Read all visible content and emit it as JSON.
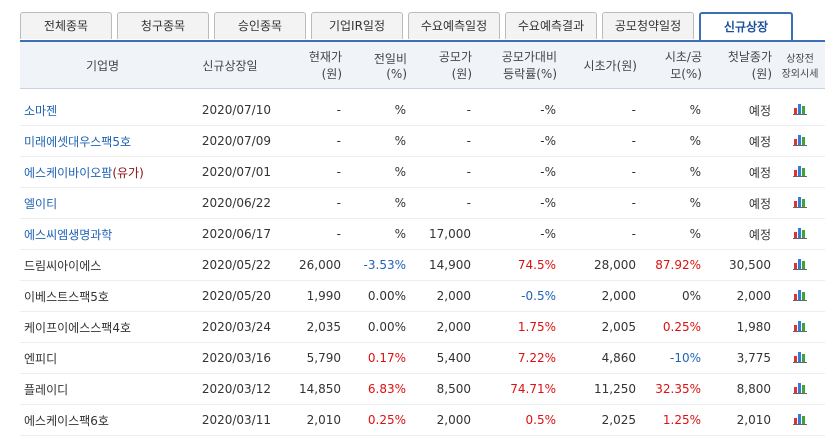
{
  "tabs": [
    "전체종목",
    "청구종목",
    "승인종목",
    "기업IR일정",
    "수요예측일정",
    "수요예측결과",
    "공모청약일정",
    "신규상장"
  ],
  "table": {
    "headers": [
      [
        "기업명"
      ],
      [
        "신규상장일"
      ],
      [
        "현재가",
        "(원)"
      ],
      [
        "전일비",
        "(%)"
      ],
      [
        "공모가",
        "(원)"
      ],
      [
        "공모가대비",
        "등락률(%)"
      ],
      [
        "시초가(원)"
      ],
      [
        "시초/공",
        "모(%)"
      ],
      [
        "첫날종가",
        "(원)"
      ],
      [
        "상장전",
        "장외시세"
      ]
    ],
    "rows": [
      {
        "name": "소마젠",
        "date": "2020/07/10",
        "price": "-",
        "change": "%",
        "offer": "-",
        "offer_change": "-%",
        "open": "-",
        "open_ratio": "%",
        "close": "예정"
      },
      {
        "name": "미래에셋대우스팩5호",
        "date": "2020/07/09",
        "price": "-",
        "change": "%",
        "offer": "-",
        "offer_change": "-%",
        "open": "-",
        "open_ratio": "%",
        "close": "예정"
      },
      {
        "name": "에스케이바이오팜",
        "tag": "(유가)",
        "date": "2020/07/01",
        "price": "-",
        "change": "%",
        "offer": "-",
        "offer_change": "-%",
        "open": "-",
        "open_ratio": "%",
        "close": "예정"
      },
      {
        "name": "엘이티",
        "date": "2020/06/22",
        "price": "-",
        "change": "%",
        "offer": "-",
        "offer_change": "-%",
        "open": "-",
        "open_ratio": "%",
        "close": "예정"
      },
      {
        "name": "에스씨엠생명과학",
        "date": "2020/06/17",
        "price": "-",
        "change": "%",
        "offer": "17,000",
        "offer_change": "-%",
        "open": "-",
        "open_ratio": "%",
        "close": "예정"
      },
      {
        "name": "드림씨아이에스",
        "date": "2020/05/22",
        "price": "26,000",
        "change": "-3.53%",
        "offer": "14,900",
        "offer_change": "74.5%",
        "open": "28,000",
        "open_ratio": "87.92%",
        "close": "30,500"
      },
      {
        "name": "이베스트스팩5호",
        "date": "2020/05/20",
        "price": "1,990",
        "change": "0.00%",
        "offer": "2,000",
        "offer_change": "-0.5%",
        "open": "2,000",
        "open_ratio": "0%",
        "close": "2,000"
      },
      {
        "name": "케이프이에스스팩4호",
        "date": "2020/03/24",
        "price": "2,035",
        "change": "0.00%",
        "offer": "2,000",
        "offer_change": "1.75%",
        "open": "2,005",
        "open_ratio": "0.25%",
        "close": "1,980"
      },
      {
        "name": "엔피디",
        "date": "2020/03/16",
        "price": "5,790",
        "change": "0.17%",
        "offer": "5,400",
        "offer_change": "7.22%",
        "open": "4,860",
        "open_ratio": "-10%",
        "close": "3,775"
      },
      {
        "name": "플레이디",
        "date": "2020/03/12",
        "price": "14,850",
        "change": "6.83%",
        "offer": "8,500",
        "offer_change": "74.71%",
        "open": "11,250",
        "open_ratio": "32.35%",
        "close": "8,800"
      },
      {
        "name": "에스케이스팩6호",
        "date": "2020/03/11",
        "price": "2,010",
        "change": "0.25%",
        "offer": "2,000",
        "offer_change": "0.5%",
        "open": "2,025",
        "open_ratio": "1.25%",
        "close": "2,010"
      }
    ]
  }
}
